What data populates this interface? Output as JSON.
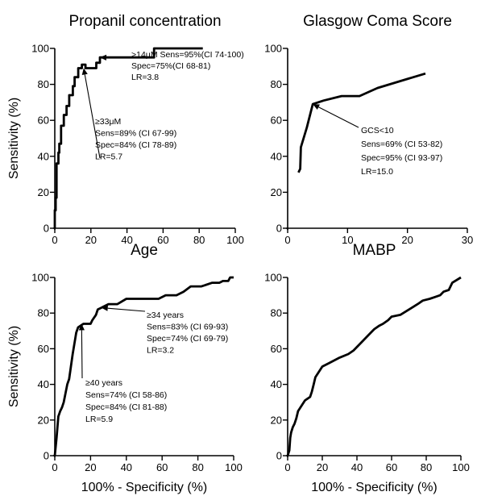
{
  "chart_data": [
    {
      "type": "line",
      "title": "Propanil concentration",
      "xlabel": "",
      "ylabel": "Sensitivity (%)",
      "xlim": [
        0,
        100
      ],
      "ylim": [
        0,
        100
      ],
      "xticks": [
        "0",
        "20",
        "40",
        "60",
        "80",
        "100"
      ],
      "yticks": [
        "0",
        "20",
        "40",
        "60",
        "80",
        "100"
      ],
      "series": [
        {
          "x": [
            0,
            0,
            0.5,
            0.5,
            1,
            1,
            2,
            2,
            2.5,
            2.5,
            3.5,
            3.5,
            5,
            5,
            6.5,
            6.5,
            8,
            8,
            10,
            10,
            11,
            11,
            13,
            13,
            15,
            15,
            17,
            17,
            23,
            23,
            25,
            25,
            55,
            55,
            82
          ],
          "y": [
            0,
            10,
            10,
            17,
            17,
            36,
            36,
            42,
            42,
            47,
            47,
            57,
            57,
            63,
            63,
            68,
            68,
            74,
            74,
            79,
            79,
            84,
            84,
            89,
            89,
            91,
            91,
            89,
            89,
            92,
            92,
            95,
            95,
            100,
            100
          ]
        }
      ],
      "annotations": [
        {
          "lines": [
            "≥33μM",
            "Sens=89% (CI 67-99)",
            "Spec=84% (CI 78-89)",
            "LR=5.7"
          ],
          "point": [
            16,
            89
          ]
        },
        {
          "lines": [
            ">14μM Sens=95%(CI 74-100)",
            "Spec=75%(CI 68-81)",
            "LR=3.8"
          ],
          "point": [
            25,
            95
          ]
        }
      ]
    },
    {
      "type": "line",
      "title": "Glasgow Coma Score",
      "xlabel": "",
      "ylabel": "",
      "xlim": [
        0,
        30
      ],
      "ylim": [
        0,
        100
      ],
      "xticks": [
        "0",
        "10",
        "20",
        "30"
      ],
      "yticks": [
        "0",
        "20",
        "40",
        "60",
        "80",
        "100"
      ],
      "series": [
        {
          "x": [
            1.8,
            2.1,
            2.2,
            3.2,
            4.2,
            6,
            9,
            12,
            15,
            19,
            23
          ],
          "y": [
            31,
            33,
            45,
            56,
            69,
            71,
            73.5,
            73.5,
            78,
            82,
            86
          ]
        }
      ],
      "annotations": [
        {
          "lines": [
            "GCS<10",
            "Sens=69% (CI 53-82)",
            "Spec=95% (CI 93-97)",
            "LR=15.0"
          ],
          "point": [
            4.2,
            69
          ]
        }
      ]
    },
    {
      "type": "line",
      "title": "Age",
      "xlabel": "100% - Specificity (%)",
      "ylabel": "Sensitivity (%)",
      "xlim": [
        0,
        100
      ],
      "ylim": [
        0,
        100
      ],
      "xticks": [
        "0",
        "20",
        "40",
        "60",
        "80",
        "100"
      ],
      "yticks": [
        "0",
        "20",
        "40",
        "60",
        "80",
        "100"
      ],
      "series": [
        {
          "x": [
            0,
            0.5,
            1,
            1.5,
            2,
            3,
            4,
            5,
            6,
            7,
            8,
            9,
            10,
            11,
            12,
            13,
            16,
            18,
            20,
            21,
            23,
            24,
            26,
            30,
            35,
            40,
            58,
            62,
            68,
            72,
            76,
            82,
            88,
            92,
            94,
            97,
            98,
            100
          ],
          "y": [
            0,
            5,
            10,
            16,
            22,
            25,
            27,
            30,
            35,
            40,
            43,
            50,
            57,
            63,
            69,
            72,
            74,
            74,
            74,
            76,
            79,
            82,
            83,
            85,
            85,
            88,
            88,
            90,
            90,
            92,
            95,
            95,
            97,
            97,
            98,
            98,
            100,
            100
          ]
        }
      ],
      "annotations": [
        {
          "lines": [
            "≥40 years",
            "Sens=74% (CI 58-86)",
            "Spec=84% (CI 81-88)",
            "LR=5.9"
          ],
          "point": [
            15,
            74
          ]
        },
        {
          "lines": [
            "≥34 years",
            "Sens=83% (CI 69-93)",
            "Spec=74% (CI 69-79)",
            "LR=3.2"
          ],
          "point": [
            26,
            83
          ]
        }
      ]
    },
    {
      "type": "line",
      "title": "MABP",
      "xlabel": "100% - Specificity (%)",
      "ylabel": "",
      "xlim": [
        0,
        100
      ],
      "ylim": [
        0,
        100
      ],
      "xticks": [
        "0",
        "20",
        "40",
        "60",
        "80",
        "100"
      ],
      "yticks": [
        "0",
        "20",
        "40",
        "60",
        "80",
        "100"
      ],
      "series": [
        {
          "x": [
            0,
            1,
            1.5,
            2,
            3,
            4,
            5,
            6,
            8,
            10,
            13,
            14,
            15,
            16,
            18,
            20,
            24,
            30,
            35,
            38,
            44,
            48,
            50,
            53,
            55,
            58,
            60,
            65,
            70,
            75,
            78,
            82,
            85,
            88,
            90,
            93,
            95,
            100
          ],
          "y": [
            0,
            3,
            10,
            13,
            16,
            18,
            21,
            25,
            28,
            31,
            33,
            36,
            40,
            44,
            47,
            50,
            52,
            55,
            57,
            59,
            65,
            69,
            71,
            73,
            74,
            76,
            78,
            79,
            82,
            85,
            87,
            88,
            89,
            90,
            92,
            93,
            97,
            100
          ]
        }
      ],
      "annotations": []
    }
  ]
}
